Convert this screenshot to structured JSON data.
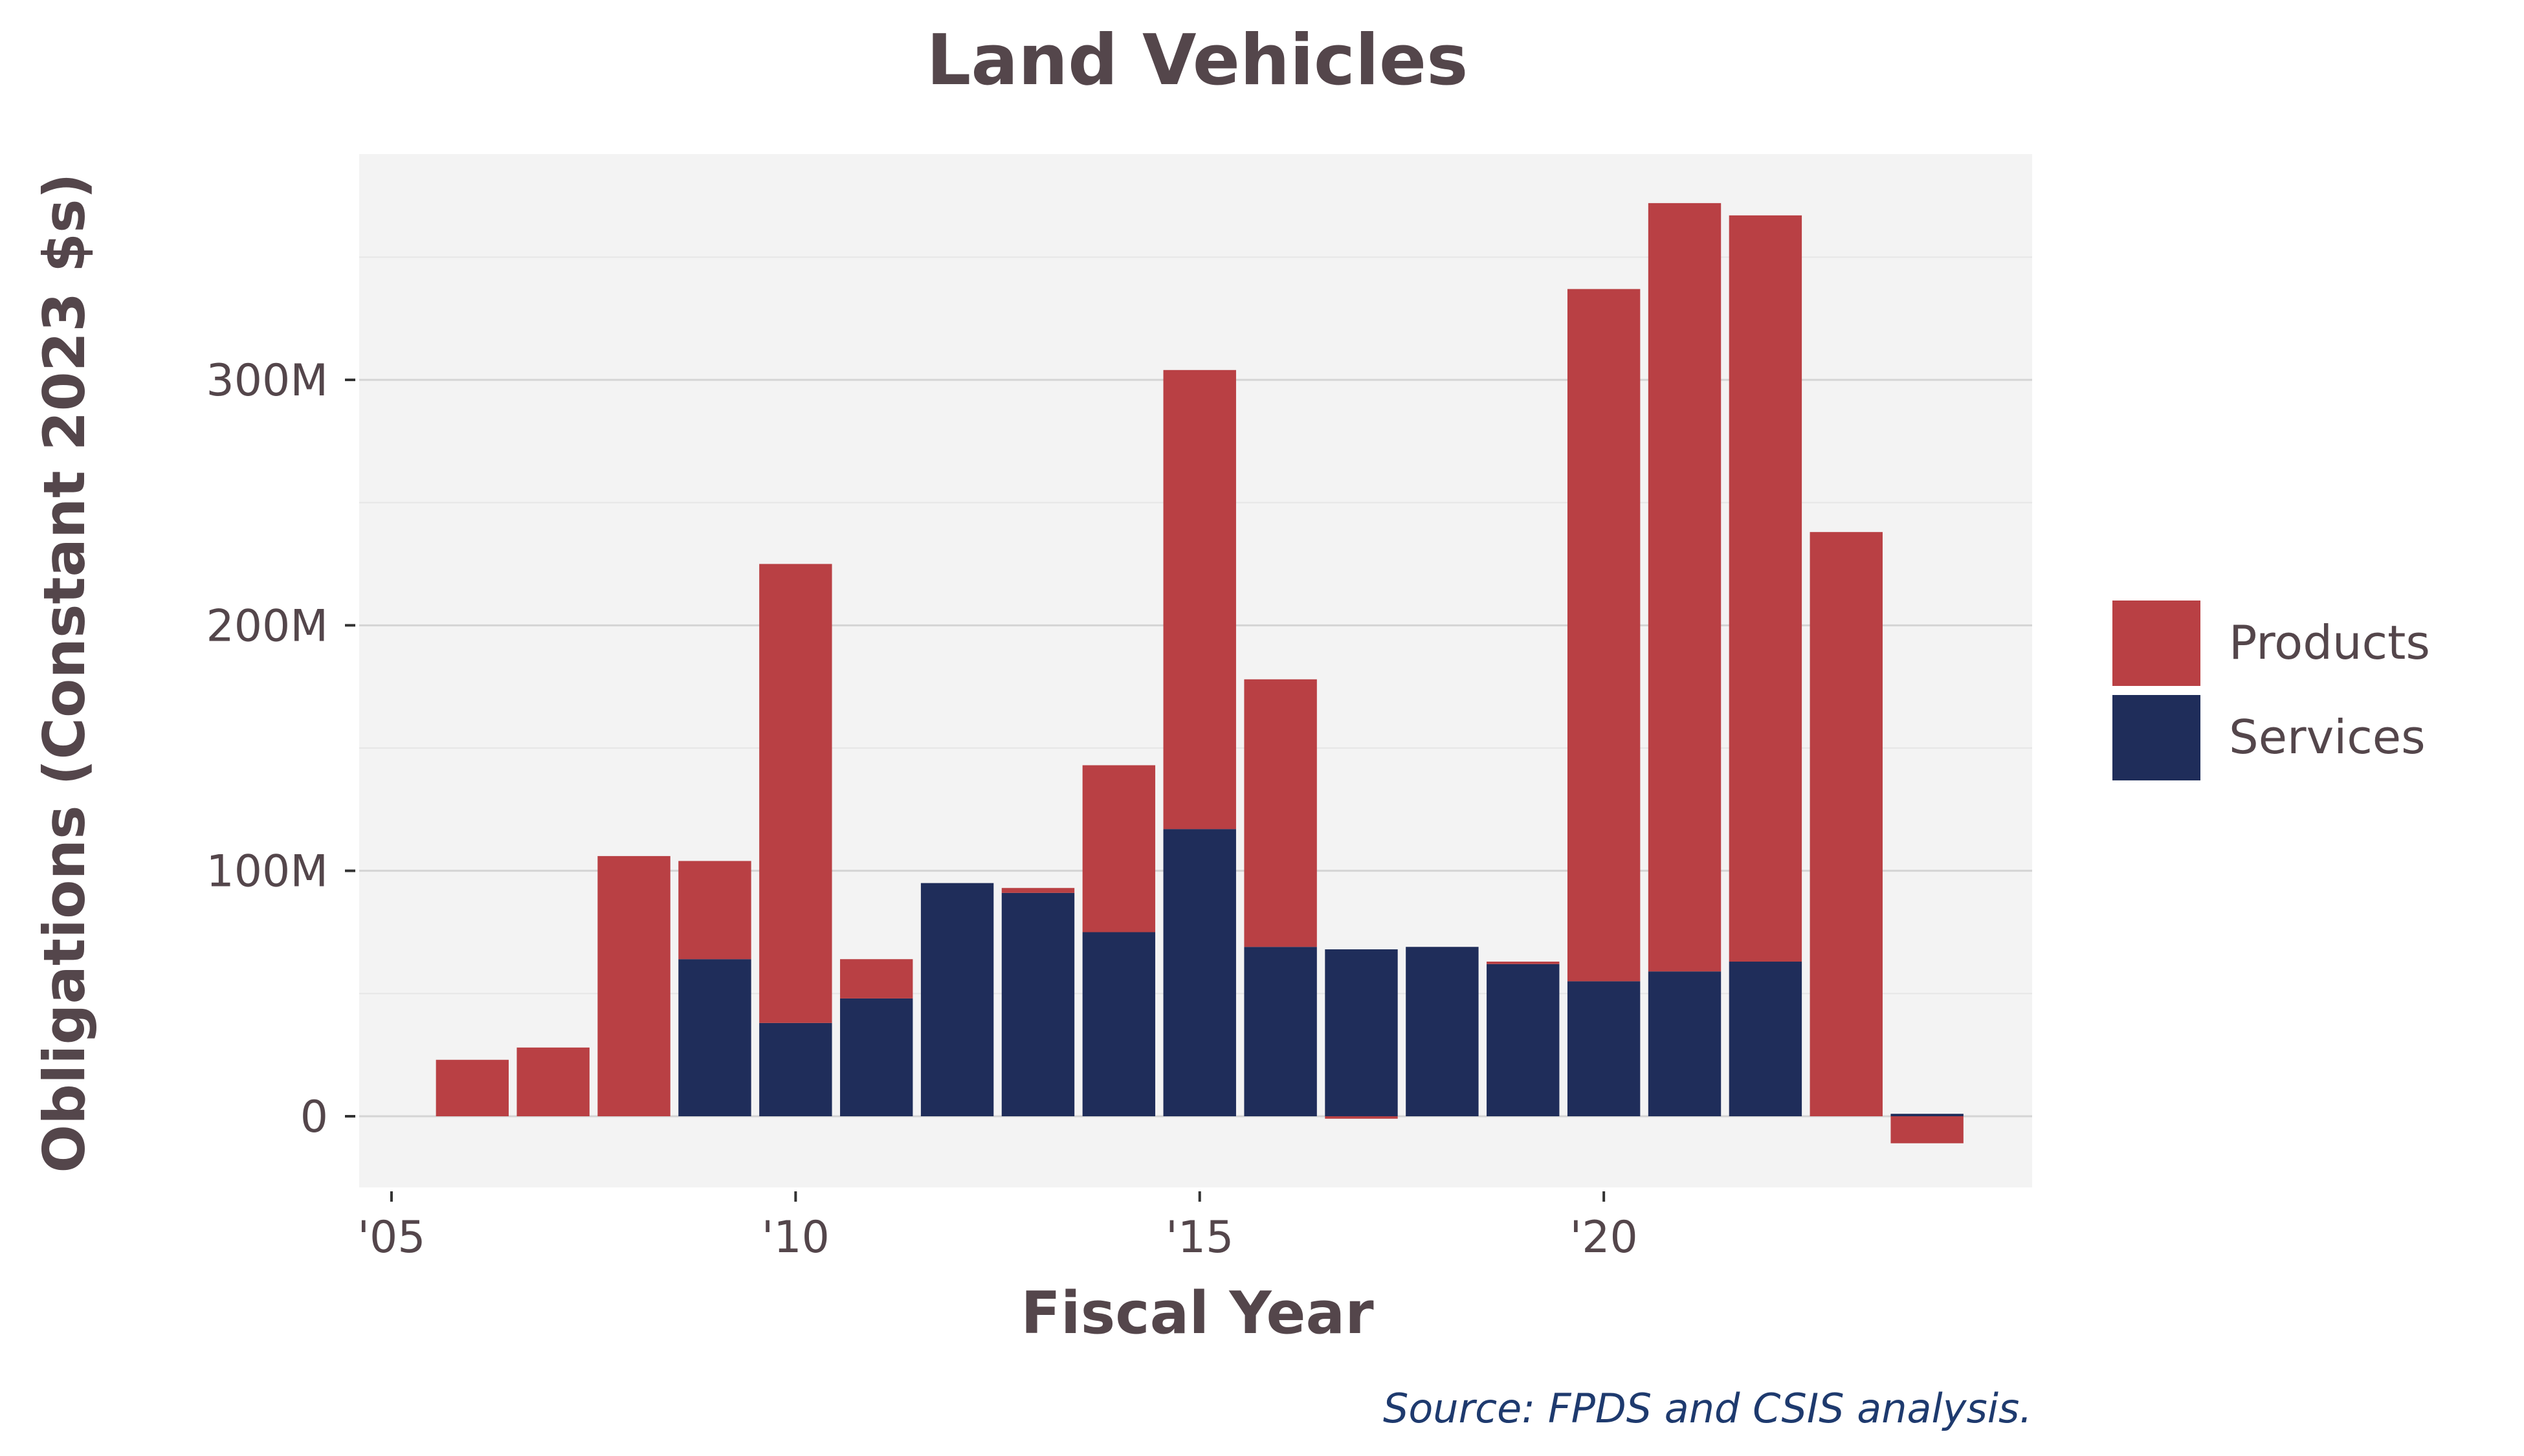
{
  "chart_data": {
    "type": "bar",
    "stacked": true,
    "title": "Land Vehicles",
    "xlabel": "Fiscal Year",
    "ylabel": "Obligations (Constant 2023 $s)",
    "caption": "Source: FPDS and CSIS analysis.",
    "x": [
      2006,
      2007,
      2008,
      2009,
      2010,
      2011,
      2012,
      2013,
      2014,
      2015,
      2016,
      2017,
      2018,
      2019,
      2020,
      2021,
      2022,
      2023,
      2024
    ],
    "series": [
      {
        "name": "Services",
        "color": "#1f2d5a",
        "values": [
          0,
          0,
          0,
          64,
          38,
          48,
          95,
          91,
          75,
          117,
          69,
          68,
          69,
          62,
          55,
          59,
          63,
          0,
          1
        ]
      },
      {
        "name": "Products",
        "color": "#b94044",
        "values": [
          23,
          28,
          106,
          40,
          187,
          16,
          0,
          2,
          68,
          187,
          109,
          -1,
          0,
          1,
          282,
          313,
          304,
          238,
          -11
        ]
      }
    ],
    "x_ticks": [
      {
        "value": 2005,
        "label": "'05"
      },
      {
        "value": 2010,
        "label": "'10"
      },
      {
        "value": 2015,
        "label": "'15"
      },
      {
        "value": 2020,
        "label": "'20"
      }
    ],
    "y_ticks": [
      {
        "value": 0,
        "label": "0"
      },
      {
        "value": 100,
        "label": "100M"
      },
      {
        "value": 200,
        "label": "200M"
      },
      {
        "value": 300,
        "label": "300M"
      }
    ],
    "ylim": [
      -29,
      392
    ],
    "xlim": [
      2004.6,
      2025.3
    ],
    "grid": true,
    "legend_position": "right",
    "legend": [
      {
        "name": "Products",
        "color": "#b94044"
      },
      {
        "name": "Services",
        "color": "#1f2d5a"
      }
    ]
  }
}
